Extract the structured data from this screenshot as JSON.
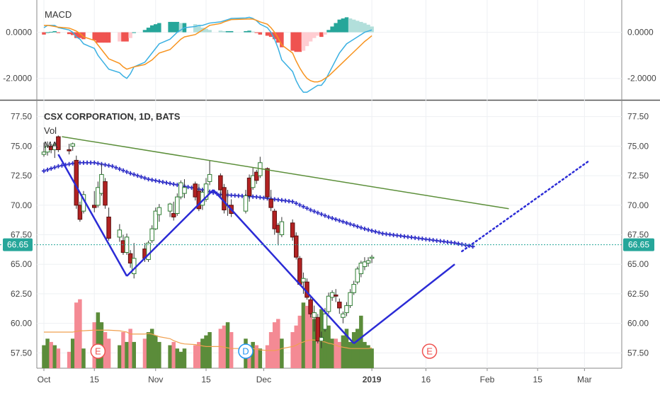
{
  "chart_data": [
    {
      "type": "line",
      "title": "MACD",
      "ylim": [
        -2.9,
        1.4
      ],
      "y_ticks": [
        "0.0000",
        "-2.0000"
      ],
      "grid": true,
      "series": [
        {
          "role": "macd-line",
          "color": "#3ab0e2",
          "values": [
            0.2,
            0.3,
            0.3,
            0.3,
            0.2,
            0.1,
            0.0,
            -0.2,
            -0.3,
            -0.5,
            -0.7,
            -1.0,
            -1.2,
            -1.4,
            -1.6,
            -1.75,
            -1.9,
            -2.0,
            -1.8,
            -1.5,
            -1.3,
            -1.1,
            -0.9,
            -0.7,
            -0.5,
            -0.3,
            -0.15,
            0.0,
            0.1,
            0.2,
            0.25,
            0.3,
            0.3,
            0.35,
            0.4,
            0.45,
            0.5,
            0.55,
            0.6,
            0.62,
            0.65,
            0.6,
            0.5,
            0.35,
            0.2,
            0.0,
            -0.3,
            -0.7,
            -1.2,
            -1.7,
            -2.1,
            -2.4,
            -2.6,
            -2.6,
            -2.5,
            -2.4,
            -2.3,
            -2.3,
            -2.1,
            -1.8,
            -1.5,
            -1.2,
            -0.9,
            -0.7,
            -0.5,
            -0.4,
            -0.3,
            -0.2,
            -0.1,
            0.0,
            0.05,
            0.1
          ]
        },
        {
          "role": "signal-line",
          "color": "#f7931e",
          "values": [
            0.3,
            0.3,
            0.28,
            0.25,
            0.22,
            0.18,
            0.12,
            0.05,
            -0.05,
            -0.2,
            -0.35,
            -0.55,
            -0.75,
            -0.95,
            -1.15,
            -1.35,
            -1.5,
            -1.6,
            -1.55,
            -1.5,
            -1.4,
            -1.3,
            -1.2,
            -1.05,
            -0.9,
            -0.75,
            -0.6,
            -0.45,
            -0.3,
            -0.2,
            -0.1,
            0.0,
            0.1,
            0.2,
            0.3,
            0.38,
            0.45,
            0.5,
            0.55,
            0.57,
            0.58,
            0.57,
            0.52,
            0.45,
            0.35,
            0.2,
            0.0,
            -0.25,
            -0.55,
            -0.9,
            -1.25,
            -1.55,
            -1.8,
            -2.0,
            -2.1,
            -2.15,
            -2.15,
            -2.1,
            -2.0,
            -1.9,
            -1.75,
            -1.6,
            -1.45,
            -1.3,
            -1.15,
            -1.0,
            -0.85,
            -0.7,
            -0.55,
            -0.4,
            -0.28,
            -0.15
          ]
        },
        {
          "role": "histogram",
          "colors": {
            "pos_up": "#26a69a",
            "pos_down": "#b2dfdb",
            "neg_down": "#ef5350",
            "neg_up": "#ffcdd2"
          },
          "values": [
            -0.1,
            0.0,
            0.02,
            0.05,
            -0.02,
            -0.08,
            -0.12,
            -0.25,
            -0.25,
            -0.3,
            -0.35,
            -0.45,
            -0.45,
            -0.45,
            -0.45,
            -0.4,
            -0.4,
            -0.4,
            -0.25,
            0.0,
            0.1,
            0.2,
            0.3,
            0.35,
            0.4,
            0.45,
            0.45,
            0.45,
            0.4,
            0.4,
            0.35,
            0.3,
            0.2,
            0.15,
            0.1,
            0.07,
            0.05,
            0.05,
            0.05,
            0.05,
            0.07,
            0.03,
            -0.02,
            -0.1,
            -0.15,
            -0.2,
            -0.3,
            -0.45,
            -0.65,
            -0.8,
            -0.85,
            -0.85,
            -0.8,
            -0.6,
            -0.4,
            -0.25,
            -0.15,
            -0.2,
            -0.1,
            0.1,
            0.25,
            0.4,
            0.55,
            0.6,
            0.65,
            0.6,
            0.55,
            0.5,
            0.45,
            0.4,
            0.33,
            0.25
          ]
        }
      ]
    },
    {
      "type": "candlestick",
      "title": "CSX CORPORATION, 1D, BATS",
      "legend": [
        "Vol",
        "MA"
      ],
      "ylim": [
        56.2,
        78.8
      ],
      "y_ticks": [
        "77.50",
        "75.00",
        "72.50",
        "70.00",
        "67.50",
        "65.00",
        "62.50",
        "60.00",
        "57.50"
      ],
      "last_price": {
        "value": 66.65,
        "label": "66.65",
        "color": "#26a69a"
      },
      "x_ticks": [
        "Oct",
        "15",
        "Nov",
        "15",
        "Dec",
        "2019",
        "16",
        "Feb",
        "15",
        "Mar"
      ],
      "x_tick_days": [
        1,
        15,
        32,
        46,
        62,
        92,
        107,
        124,
        138,
        151
      ],
      "candle_days": [
        1,
        2,
        3,
        4,
        5,
        8,
        9,
        10,
        11,
        12,
        15,
        16,
        17,
        18,
        19,
        22,
        23,
        24,
        25,
        26,
        29,
        30,
        31,
        32,
        33,
        36,
        37,
        38,
        39,
        40,
        43,
        44,
        45,
        46,
        47,
        50,
        51,
        52,
        53,
        57,
        58,
        59,
        60,
        61,
        63,
        64,
        65,
        66,
        67,
        70,
        71,
        72,
        73,
        74,
        75,
        76,
        77,
        78,
        79,
        80,
        81,
        82,
        83,
        84,
        85,
        86,
        87,
        88,
        89,
        90,
        91,
        92
      ],
      "candles": [
        [
          74.3,
          75.3,
          74.1,
          74.5
        ],
        [
          74.5,
          75.4,
          74.2,
          75.0
        ],
        [
          75.0,
          75.2,
          74.4,
          74.7
        ],
        [
          74.7,
          75.3,
          74.0,
          75.1
        ],
        [
          75.8,
          75.9,
          74.5,
          74.7
        ],
        [
          74.7,
          75.2,
          74.3,
          74.6
        ],
        [
          75.0,
          75.3,
          74.6,
          75.2
        ],
        [
          73.8,
          74.2,
          69.7,
          70.0
        ],
        [
          70.0,
          70.3,
          68.6,
          68.8
        ],
        [
          69.5,
          71.2,
          69.3,
          70.9
        ],
        [
          70.0,
          71.2,
          69.4,
          69.8
        ],
        [
          70.0,
          72.0,
          69.8,
          71.5
        ],
        [
          71.0,
          73.5,
          70.8,
          72.6
        ],
        [
          72.0,
          72.3,
          69.7,
          70.0
        ],
        [
          69.0,
          69.8,
          67.0,
          67.2
        ],
        [
          67.3,
          68.4,
          66.9,
          67.9
        ],
        [
          67.0,
          67.5,
          65.8,
          66.0
        ],
        [
          66.0,
          67.6,
          65.8,
          67.3
        ],
        [
          65.9,
          66.2,
          64.7,
          65.1
        ],
        [
          64.2,
          66.8,
          63.8,
          65.5
        ],
        [
          66.3,
          66.8,
          65.2,
          65.5
        ],
        [
          65.4,
          67.0,
          65.2,
          66.8
        ],
        [
          67.0,
          68.3,
          66.8,
          68.0
        ],
        [
          68.0,
          69.8,
          67.9,
          69.5
        ],
        [
          69.2,
          70.1,
          68.6,
          69.8
        ],
        [
          69.5,
          70.2,
          69.0,
          70.1
        ],
        [
          69.3,
          70.3,
          68.7,
          69.0
        ],
        [
          69.3,
          71.0,
          69.1,
          70.7
        ],
        [
          70.7,
          72.1,
          70.5,
          71.9
        ],
        [
          71.0,
          72.2,
          70.6,
          71.5
        ],
        [
          71.8,
          72.0,
          70.4,
          70.7
        ],
        [
          71.2,
          71.8,
          69.5,
          69.7
        ],
        [
          70.0,
          71.3,
          69.6,
          71.1
        ],
        [
          70.5,
          72.3,
          70.3,
          71.8
        ],
        [
          72.0,
          73.8,
          71.7,
          72.6
        ],
        [
          72.5,
          72.7,
          70.6,
          71.3
        ],
        [
          71.5,
          71.8,
          69.3,
          69.6
        ],
        [
          70.0,
          71.3,
          69.1,
          70.0
        ],
        [
          70.0,
          70.5,
          69.0,
          69.3
        ],
        [
          69.5,
          71.3,
          69.3,
          70.8
        ],
        [
          72.3,
          72.6,
          70.3,
          70.8
        ],
        [
          71.5,
          73.2,
          71.3,
          72.5
        ],
        [
          72.8,
          73.0,
          71.8,
          72.1
        ],
        [
          72.5,
          74.1,
          72.3,
          73.6
        ],
        [
          73.1,
          73.2,
          70.5,
          70.7
        ],
        [
          70.5,
          71.3,
          69.5,
          69.8
        ],
        [
          69.5,
          69.7,
          67.5,
          68.0
        ],
        [
          68.3,
          68.5,
          66.6,
          67.7
        ],
        [
          67.5,
          69.0,
          67.3,
          68.6
        ],
        [
          68.5,
          68.8,
          67.0,
          67.3
        ],
        [
          67.4,
          67.7,
          65.4,
          65.6
        ],
        [
          65.5,
          65.7,
          63.2,
          63.3
        ],
        [
          63.5,
          64.3,
          62.5,
          63.8
        ],
        [
          63.5,
          63.8,
          62.0,
          62.2
        ],
        [
          62.0,
          62.3,
          60.5,
          60.8
        ],
        [
          60.5,
          61.5,
          59.3,
          60.9
        ],
        [
          60.5,
          60.8,
          58.3,
          58.5
        ],
        [
          58.5,
          59.3,
          57.9,
          58.8
        ],
        [
          59.5,
          61.3,
          59.3,
          60.8
        ],
        [
          61.0,
          62.6,
          60.8,
          62.3
        ],
        [
          62.2,
          62.8,
          61.9,
          62.6
        ],
        [
          62.4,
          62.9,
          61.8,
          62.3
        ],
        [
          61.8,
          62.1,
          60.8,
          61.3
        ],
        [
          60.5,
          61.0,
          60.0,
          60.8
        ],
        [
          60.9,
          61.8,
          60.6,
          61.5
        ],
        [
          61.5,
          62.9,
          61.3,
          62.6
        ],
        [
          62.6,
          63.6,
          62.4,
          63.3
        ],
        [
          63.5,
          64.8,
          63.3,
          64.6
        ],
        [
          64.2,
          65.3,
          63.9,
          65.1
        ],
        [
          64.8,
          65.6,
          64.5,
          65.2
        ],
        [
          65.1,
          65.6,
          64.8,
          65.3
        ],
        [
          65.5,
          65.8,
          65.1,
          65.6
        ]
      ],
      "ma_days": [
        1,
        5,
        10,
        15,
        20,
        25,
        30,
        35,
        40,
        45,
        50,
        55,
        60,
        65,
        70,
        75,
        80,
        85,
        90,
        95,
        100,
        105,
        110,
        115,
        120
      ],
      "ma_values": [
        72.9,
        73.3,
        73.6,
        73.6,
        73.3,
        72.7,
        72.2,
        71.9,
        71.6,
        71.3,
        70.9,
        70.8,
        70.7,
        70.5,
        70.3,
        69.6,
        69.0,
        68.5,
        68.0,
        67.6,
        67.4,
        67.2,
        67.0,
        66.8,
        66.5
      ],
      "ma_color": "#3030c8",
      "volume": {
        "up_color": "#5b8c3a",
        "down_color": "#f48a94",
        "values": [
          35,
          45,
          40,
          35,
          30,
          25,
          45,
          100,
          105,
          30,
          70,
          85,
          70,
          55,
          45,
          35,
          55,
          40,
          60,
          40,
          45,
          55,
          60,
          50,
          40,
          35,
          40,
          30,
          25,
          30,
          35,
          40,
          45,
          50,
          55,
          60,
          65,
          70,
          55,
          45,
          30,
          40,
          35,
          30,
          35,
          55,
          70,
          75,
          45,
          55,
          65,
          80,
          100,
          95,
          90,
          75,
          60,
          90,
          70,
          65,
          45,
          45,
          40,
          50,
          60,
          40,
          55,
          60,
          80,
          40,
          35,
          30
        ],
        "ma_values": [
          55,
          55,
          55,
          55,
          55,
          55,
          55,
          56,
          57,
          57,
          58,
          58,
          58,
          58,
          58,
          57,
          56,
          55,
          52,
          52,
          52,
          53,
          52,
          50,
          48,
          45,
          42,
          40,
          38,
          37,
          36,
          35,
          34,
          33,
          33,
          33,
          32,
          31,
          30,
          30,
          30,
          30,
          29,
          28,
          27,
          27,
          27,
          28,
          30,
          33,
          35,
          38,
          40,
          42,
          43,
          43,
          42,
          41,
          40,
          38,
          37,
          35,
          33,
          32,
          31,
          30,
          30,
          30,
          30,
          30,
          30,
          31
        ],
        "ma_color": "#f0a050"
      },
      "earnings_markers": [
        {
          "day": 16,
          "label": "E",
          "color": "#ef5350"
        },
        {
          "day": 57,
          "label": "D",
          "color": "#2196f3"
        },
        {
          "day": 108,
          "label": "E",
          "color": "#ef5350"
        }
      ],
      "trendlines": [
        {
          "role": "pattern",
          "color": "#2b2bd6",
          "points": [
            [
              5,
              74.3
            ],
            [
              24,
              64.0
            ]
          ]
        },
        {
          "role": "pattern",
          "color": "#2b2bd6",
          "points": [
            [
              24,
              64.0
            ],
            [
              48,
              71.3
            ]
          ]
        },
        {
          "role": "pattern",
          "color": "#2b2bd6",
          "points": [
            [
              48,
              71.3
            ],
            [
              87,
              58.3
            ]
          ]
        },
        {
          "role": "pattern",
          "color": "#2b2bd6",
          "points": [
            [
              87,
              58.3
            ],
            [
              115,
              65.0
            ]
          ]
        },
        {
          "role": "resistance",
          "color": "#5c8f3a",
          "points": [
            [
              6,
              75.8
            ],
            [
              130,
              69.7
            ]
          ]
        },
        {
          "role": "projection",
          "color": "#2b2bd6",
          "dashed": true,
          "points": [
            [
              117,
              66.1
            ],
            [
              152,
              73.7
            ]
          ]
        }
      ]
    }
  ]
}
